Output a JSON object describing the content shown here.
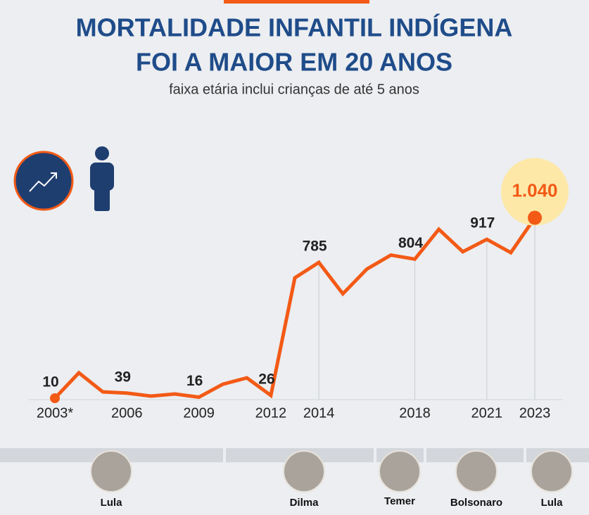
{
  "chart_data": {
    "type": "line",
    "title_lines": [
      "MORTALIDADE INFANTIL INDÍGENA",
      "FOI A MAIOR EM 20 ANOS"
    ],
    "subtitle": "faixa etária inclui crianças de até 5 anos",
    "x": [
      2003,
      2004,
      2005,
      2006,
      2007,
      2008,
      2009,
      2010,
      2011,
      2012,
      2013,
      2014,
      2015,
      2016,
      2017,
      2018,
      2019,
      2020,
      2021,
      2022,
      2023
    ],
    "values": [
      10,
      155,
      46,
      39,
      22,
      34,
      16,
      90,
      126,
      26,
      697,
      785,
      606,
      747,
      827,
      804,
      974,
      846,
      917,
      841,
      1040
    ],
    "value_labels": [
      "10",
      null,
      null,
      "39",
      null,
      null,
      "16",
      null,
      null,
      "26",
      null,
      "785",
      null,
      null,
      null,
      "804",
      null,
      null,
      "917",
      null,
      "1.040"
    ],
    "color": "#f35a16",
    "xlim": [
      2003,
      2023
    ],
    "ylim": [
      0,
      1200
    ],
    "xticks": [
      {
        "value": 2003,
        "label": "2003*"
      },
      2006,
      2009,
      2012,
      2014,
      2018,
      2021,
      2023
    ],
    "grid": false
  },
  "presidents": [
    "Lula",
    "Dilma",
    "Temer",
    "Bolsonaro",
    "Lula"
  ]
}
